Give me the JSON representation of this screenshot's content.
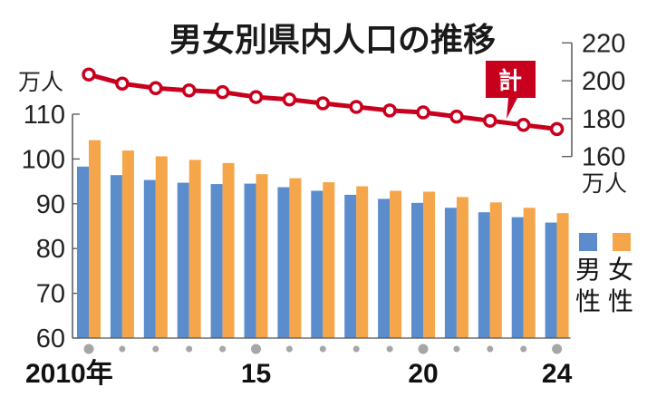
{
  "title": "男女別県内人口の推移",
  "colors": {
    "male": "#5b8dcc",
    "female": "#f6a64a",
    "total": "#c8001e",
    "axis": "#555555",
    "year_dot": "#a6a6a6"
  },
  "left_axis": {
    "unit": "万人",
    "ticks": [
      "110",
      "100",
      "90",
      "80",
      "70",
      "60"
    ]
  },
  "right_axis": {
    "unit": "万人",
    "ticks": [
      "220",
      "200",
      "180",
      "160"
    ]
  },
  "x_axis": {
    "labels": [
      "2010年",
      "15",
      "20",
      "24"
    ]
  },
  "callout": {
    "label": "計"
  },
  "legend": [
    {
      "name": "男性",
      "color": "#5b8dcc"
    },
    {
      "name": "女性",
      "color": "#f6a64a"
    }
  ],
  "chart_data": {
    "type": "bar",
    "title": "男女別県内人口の推移",
    "xlabel": "",
    "ylabel": "万人",
    "categories": [
      "2010",
      "2011",
      "2012",
      "2013",
      "2014",
      "2015",
      "2016",
      "2017",
      "2018",
      "2019",
      "2020",
      "2021",
      "2022",
      "2023",
      "2024"
    ],
    "tick_labels": [
      "2010年",
      "15",
      "20",
      "24"
    ],
    "series": [
      {
        "name": "男性",
        "type": "bar",
        "axis": "left",
        "color": "#5b8dcc",
        "values": [
          98.3,
          96.4,
          95.3,
          94.7,
          94.4,
          94.5,
          93.7,
          92.9,
          92.0,
          91.1,
          90.2,
          89.1,
          88.1,
          87.0,
          85.8
        ]
      },
      {
        "name": "女性",
        "type": "bar",
        "axis": "left",
        "color": "#f6a64a",
        "values": [
          104.2,
          101.9,
          100.6,
          99.8,
          99.1,
          96.6,
          95.7,
          94.8,
          93.9,
          92.9,
          92.7,
          91.5,
          90.3,
          89.1,
          87.9
        ]
      },
      {
        "name": "計",
        "type": "line",
        "axis": "right",
        "color": "#c8001e",
        "values": [
          203.3,
          198.5,
          196.1,
          194.9,
          194.0,
          191.4,
          190.1,
          188.1,
          186.2,
          184.3,
          183.3,
          181.1,
          178.9,
          176.7,
          174.5
        ]
      }
    ],
    "ylim": [
      60,
      110
    ],
    "y2lim": [
      160,
      220
    ],
    "yticks": [
      60,
      70,
      80,
      90,
      100,
      110
    ],
    "y2ticks": [
      160,
      180,
      200,
      220
    ],
    "y2label": "万人",
    "grid": false,
    "legend_position": "right"
  }
}
